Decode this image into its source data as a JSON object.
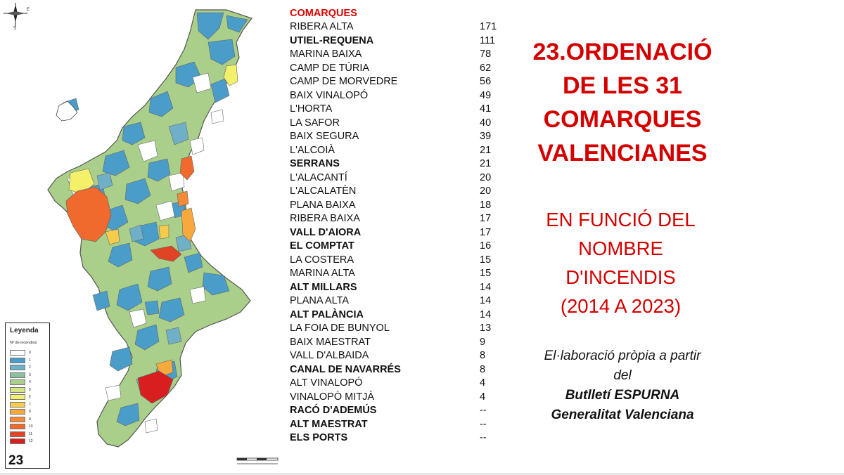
{
  "slide_number": "23",
  "compass": {
    "labels": [
      "E",
      "S"
    ]
  },
  "legend": {
    "title": "Leyenda",
    "subtitle": "Nº de incendios",
    "classes": [
      {
        "value": "0",
        "color": "#ffffff"
      },
      {
        "value": "1",
        "color": "#4a9cc9"
      },
      {
        "value": "2",
        "color": "#6fb0c8"
      },
      {
        "value": "3",
        "color": "#8cc0a0"
      },
      {
        "value": "4",
        "color": "#a9cf8a"
      },
      {
        "value": "5",
        "color": "#d5e683"
      },
      {
        "value": "6",
        "color": "#f4f06a"
      },
      {
        "value": "7",
        "color": "#f6cc4c"
      },
      {
        "value": "8",
        "color": "#f7a93e"
      },
      {
        "value": "9",
        "color": "#f48a36"
      },
      {
        "value": "10",
        "color": "#ef6a2c"
      },
      {
        "value": "11",
        "color": "#e04424"
      },
      {
        "value": "12",
        "color": "#d81e1e"
      }
    ]
  },
  "table": {
    "header": "COMARQUES",
    "rows": [
      {
        "name": "RIBERA ALTA",
        "count": "171",
        "bold": false
      },
      {
        "name": "UTIEL-REQUENA",
        "count": "111",
        "bold": true
      },
      {
        "name": "MARINA BAIXA",
        "count": "78",
        "bold": false
      },
      {
        "name": "CAMP DE TÚRIA",
        "count": "62",
        "bold": false
      },
      {
        "name": "CAMP DE MORVEDRE",
        "count": "56",
        "bold": false
      },
      {
        "name": "BAIX VINALOPÓ",
        "count": "49",
        "bold": false
      },
      {
        "name": "L'HORTA",
        "count": "41",
        "bold": false
      },
      {
        "name": "LA SAFOR",
        "count": "40",
        "bold": false
      },
      {
        "name": "BAIX SEGURA",
        "count": "39",
        "bold": false
      },
      {
        "name": "L'ALCOIÀ",
        "count": "21",
        "bold": false
      },
      {
        "name": "SERRANS",
        "count": "21",
        "bold": true
      },
      {
        "name": "L'ALACANTÍ",
        "count": "20",
        "bold": false
      },
      {
        "name": "L'ALCALATÈN",
        "count": "20",
        "bold": false
      },
      {
        "name": "PLANA BAIXA",
        "count": "18",
        "bold": false
      },
      {
        "name": "RIBERA BAIXA",
        "count": "17",
        "bold": false
      },
      {
        "name": "VALL D'AIORA",
        "count": "17",
        "bold": true
      },
      {
        "name": "EL COMPTAT",
        "count": "16",
        "bold": true
      },
      {
        "name": "LA COSTERA",
        "count": "15",
        "bold": false
      },
      {
        "name": "MARINA ALTA",
        "count": "15",
        "bold": false
      },
      {
        "name": "ALT MILLARS",
        "count": "14",
        "bold": true
      },
      {
        "name": "PLANA ALTA",
        "count": "14",
        "bold": false
      },
      {
        "name": "ALT PALÀNCIA",
        "count": "14",
        "bold": true
      },
      {
        "name": "LA FOIA DE BUNYOL",
        "count": "13",
        "bold": false
      },
      {
        "name": "BAIX MAESTRAT",
        "count": "9",
        "bold": false
      },
      {
        "name": "VALL D'ALBAIDA",
        "count": "8",
        "bold": false
      },
      {
        "name": "CANAL DE NAVARRÉS",
        "count": "8",
        "bold": true
      },
      {
        "name": "ALT VINALOPÓ",
        "count": "4",
        "bold": false
      },
      {
        "name": "VINALOPÒ MITJÀ",
        "count": "4",
        "bold": false
      },
      {
        "name": "RACÓ D'ADEMÚS",
        "count": "--",
        "bold": true
      },
      {
        "name": "ALT MAESTRAT",
        "count": "--",
        "bold": true
      },
      {
        "name": "ELS PORTS",
        "count": "--",
        "bold": true
      }
    ]
  },
  "title_lines": [
    "23.ORDENACIÓ",
    "DE LES 31",
    "COMARQUES",
    "VALENCIANES"
  ],
  "subtitle_lines": [
    "EN FUNCIÓ DEL",
    "NOMBRE",
    "D'INCENDIS",
    "(2014 A 2023)"
  ],
  "credit_lines": [
    {
      "text": "El·laboració pròpia a partir",
      "bold": false
    },
    {
      "text": "del",
      "bold": false
    },
    {
      "text": "Butlletí ESPURNA",
      "bold": true
    },
    {
      "text": "Generalitat Valenciana",
      "bold": true
    }
  ],
  "colors": {
    "accent": "#d40000",
    "header": "#e00000"
  }
}
